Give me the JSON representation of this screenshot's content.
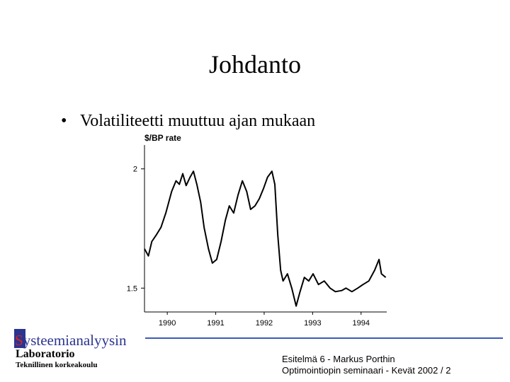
{
  "slide": {
    "title": "Johdanto",
    "bullet": "Volatiliteetti muuttuu ajan mukaan",
    "logo": {
      "name": "Systeemianalyysin",
      "subtitle": "Laboratorio",
      "institution": "Teknillinen korkeakoulu"
    },
    "footer": [
      "Esitelmä 6 - Markus Porthin",
      "Optimointiopin seminaari - Kevät 2002 / 2"
    ]
  },
  "chart_data": {
    "type": "line",
    "y_label": "$/BP rate",
    "color": "#000000",
    "x": [
      1989.53,
      1989.61,
      1989.68,
      1989.78,
      1989.87,
      1989.97,
      1990.09,
      1990.18,
      1990.25,
      1990.32,
      1990.39,
      1990.47,
      1990.54,
      1990.61,
      1990.69,
      1990.76,
      1990.85,
      1990.93,
      1991.02,
      1991.11,
      1991.2,
      1991.28,
      1991.37,
      1991.46,
      1991.55,
      1991.64,
      1991.72,
      1991.81,
      1991.9,
      1991.99,
      1992.07,
      1992.16,
      1992.22,
      1992.28,
      1992.34,
      1992.39,
      1992.48,
      1992.57,
      1992.66,
      1992.74,
      1992.83,
      1992.92,
      1993.01,
      1993.12,
      1993.24,
      1993.36,
      1993.47,
      1993.6,
      1993.69,
      1993.81,
      1993.93,
      1994.04,
      1994.16,
      1994.28,
      1994.37,
      1994.42,
      1994.51
    ],
    "values": [
      1.665,
      1.635,
      1.695,
      1.725,
      1.755,
      1.815,
      1.905,
      1.95,
      1.935,
      1.98,
      1.93,
      1.965,
      1.99,
      1.935,
      1.86,
      1.755,
      1.665,
      1.605,
      1.62,
      1.695,
      1.785,
      1.845,
      1.815,
      1.89,
      1.95,
      1.905,
      1.83,
      1.845,
      1.875,
      1.92,
      1.965,
      1.99,
      1.935,
      1.725,
      1.575,
      1.53,
      1.56,
      1.5,
      1.425,
      1.485,
      1.545,
      1.53,
      1.56,
      1.515,
      1.53,
      1.5,
      1.485,
      1.49,
      1.5,
      1.485,
      1.5,
      1.515,
      1.53,
      1.575,
      1.62,
      1.56,
      1.545
    ],
    "xlim": [
      1989.53,
      1994.53
    ],
    "xticks": [
      1990,
      1991,
      1992,
      1993,
      1994
    ],
    "ylim": [
      1.4,
      2.1
    ],
    "yticks": [
      1.5,
      2
    ]
  }
}
